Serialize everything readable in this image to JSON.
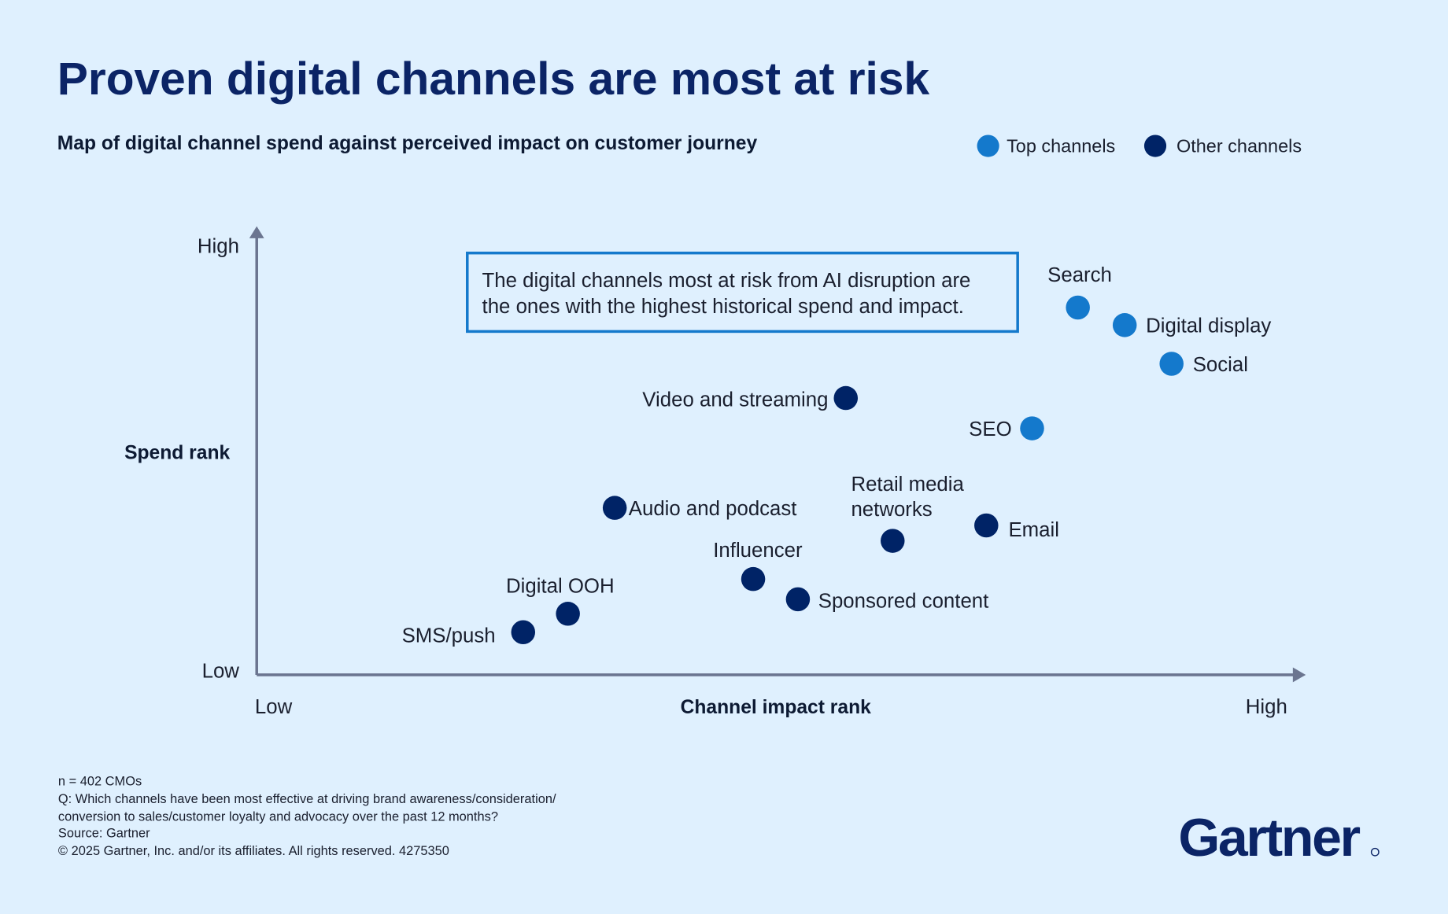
{
  "title": "Proven digital channels are most at risk",
  "subtitle": "Map of digital channel spend against perceived impact on customer journey",
  "legend": {
    "top": {
      "label": "Top channels",
      "color": "#1479cc"
    },
    "other": {
      "label": "Other channels",
      "color": "#002366"
    }
  },
  "callout": {
    "line1": "The digital channels most at risk from AI disruption are",
    "line2": "the ones with the highest historical spend and impact."
  },
  "chart_data": {
    "type": "scatter",
    "title": "Proven digital channels are most at risk",
    "subtitle": "Map of digital channel spend against perceived impact on customer journey",
    "xlabel": "Channel impact rank",
    "ylabel": "Spend rank",
    "x_ticks": {
      "low": "Low",
      "high": "High"
    },
    "y_ticks": {
      "low": "Low",
      "high": "High"
    },
    "xlim": [
      0,
      100
    ],
    "ylim": [
      0,
      100
    ],
    "grid": false,
    "legend_position": "top-right",
    "series": [
      {
        "name": "Top channels",
        "color": "#1479cc",
        "points": [
          {
            "label": "Search",
            "x": 78.9,
            "y": 83.6
          },
          {
            "label": "Digital display",
            "x": 83.4,
            "y": 79.6
          },
          {
            "label": "Social",
            "x": 87.9,
            "y": 70.8
          },
          {
            "label": "SEO",
            "x": 74.5,
            "y": 56.1
          }
        ]
      },
      {
        "name": "Other channels",
        "color": "#002366",
        "points": [
          {
            "label": "Video and streaming",
            "x": 56.6,
            "y": 63.0
          },
          {
            "label": "Audio and podcast",
            "x": 34.4,
            "y": 38.0
          },
          {
            "label": "Retail media networks",
            "x": 61.1,
            "y": 30.5
          },
          {
            "label": "Email",
            "x": 70.1,
            "y": 34.0
          },
          {
            "label": "Influencer",
            "x": 47.7,
            "y": 21.8
          },
          {
            "label": "Sponsored content",
            "x": 52.0,
            "y": 17.2
          },
          {
            "label": "Digital OOH",
            "x": 29.9,
            "y": 13.9
          },
          {
            "label": "SMS/push",
            "x": 25.6,
            "y": 9.7
          }
        ]
      }
    ]
  },
  "footnotes": {
    "n": "n = 402 CMOs",
    "q1": "Q: Which channels have been most effective at driving brand awareness/consideration/",
    "q2": "conversion to sales/customer loyalty and advocacy over the past 12 months?",
    "source": "Source: Gartner",
    "copyright": "© 2025 Gartner, Inc. and/or its affiliates. All rights reserved. 4275350"
  },
  "logo": "Gartner"
}
